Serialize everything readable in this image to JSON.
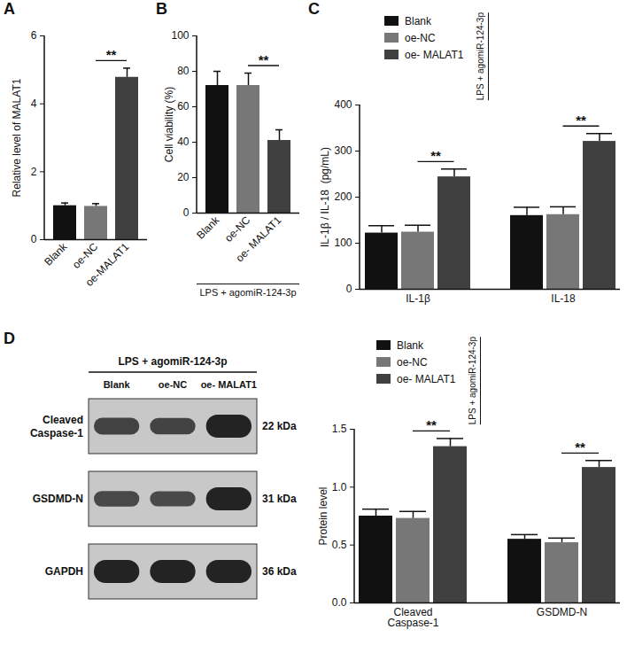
{
  "chart_data": [
    {
      "type": "bar",
      "title": "A",
      "y_label": "Relative level of MALAT1",
      "categories": [
        "Blank",
        "oe-NC",
        "oe-MALAT1"
      ],
      "values": [
        1.0,
        0.98,
        4.78
      ],
      "errors": [
        0.08,
        0.08,
        0.27
      ],
      "colors": [
        "#111111",
        "#777777",
        "#404040"
      ],
      "ylim": [
        0,
        6
      ],
      "yticks": [
        0,
        2,
        4,
        6
      ],
      "annotations": [
        {
          "text": "**",
          "from": "oe-NC",
          "to": "oe-MALAT1"
        }
      ]
    },
    {
      "type": "bar",
      "title": "B",
      "y_label": "Cell viability (%)",
      "categories": [
        "Blank",
        "oe-NC",
        "oe- MALAT1"
      ],
      "values": [
        72,
        72,
        41
      ],
      "errors": [
        8,
        7,
        6
      ],
      "colors": [
        "#111111",
        "#777777",
        "#404040"
      ],
      "ylim": [
        0,
        100
      ],
      "yticks": [
        0,
        20,
        40,
        60,
        80,
        100
      ],
      "annotations": [
        {
          "text": "**",
          "from": "oe-NC",
          "to": "oe- MALAT1"
        },
        {
          "text": "LPS + agomiR-124-3p"
        }
      ]
    },
    {
      "type": "bar",
      "title": "C",
      "y_label": "IL-1β / IL-18  (pg/mL)",
      "categories": [
        "IL-1β",
        "IL-18"
      ],
      "series": [
        {
          "name": "Blank",
          "color": "#111111",
          "values": [
            122,
            160
          ],
          "errors": [
            16,
            18
          ]
        },
        {
          "name": "oe-NC",
          "color": "#777777",
          "values": [
            124,
            162
          ],
          "errors": [
            15,
            17
          ]
        },
        {
          "name": "oe- MALAT1",
          "color": "#404040",
          "values": [
            244,
            321
          ],
          "errors": [
            17,
            17
          ]
        }
      ],
      "ylim": [
        0,
        400
      ],
      "yticks": [
        0,
        100,
        200,
        300,
        400
      ],
      "legend": "top",
      "annotations": [
        {
          "text": "**",
          "group": "IL-1β",
          "from": "oe-NC",
          "to": "oe- MALAT1"
        },
        {
          "text": "**",
          "group": "IL-18",
          "from": "oe-NC",
          "to": "oe- MALAT1"
        },
        {
          "text": "LPS + agomiR-124-3p"
        }
      ]
    },
    {
      "type": "bar",
      "y_label": "Protein level",
      "categories": [
        "Cleaved\nCaspase-1",
        "GSDMD-N"
      ],
      "series": [
        {
          "name": "Blank",
          "color": "#111111",
          "values": [
            0.75,
            0.55
          ],
          "errors": [
            0.06,
            0.04
          ]
        },
        {
          "name": "oe-NC",
          "color": "#777777",
          "values": [
            0.73,
            0.52
          ],
          "errors": [
            0.06,
            0.04
          ]
        },
        {
          "name": "oe- MALAT1",
          "color": "#404040",
          "values": [
            1.35,
            1.17
          ],
          "errors": [
            0.07,
            0.06
          ]
        }
      ],
      "ylim": [
        0,
        1.5
      ],
      "yticks": [
        {
          "value": 0,
          "label": "0.0"
        },
        0.5,
        {
          "value": 1,
          "label": "1.0"
        },
        1.5
      ],
      "legend": "top",
      "annotations": [
        {
          "text": "**",
          "group": "Cleaved\nCaspase-1",
          "from": "oe-NC",
          "to": "oe- MALAT1"
        },
        {
          "text": "**",
          "group": "GSDMD-N",
          "from": "oe-NC",
          "to": "oe- MALAT1"
        },
        {
          "text": "LPS + agomiR-124-3p"
        }
      ]
    }
  ],
  "blot": {
    "title": "D",
    "header": "LPS + agomiR-124-3p",
    "lanes": [
      "Blank",
      "oe-NC",
      "oe- MALAT1"
    ],
    "rows": [
      {
        "label": "Cleaved\nCaspase-1",
        "mw": "22 kDa"
      },
      {
        "label": "GSDMD-N",
        "mw": "31 kDa"
      },
      {
        "label": "GAPDH",
        "mw": "36 kDa"
      }
    ]
  }
}
